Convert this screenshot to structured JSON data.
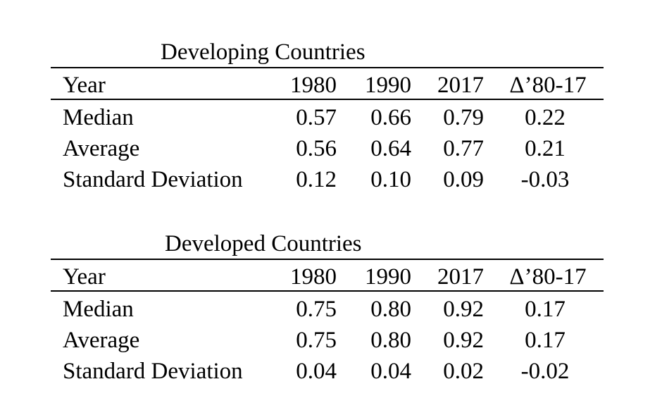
{
  "tables": [
    {
      "caption": "Developing Countries",
      "header": [
        "Year",
        "1980",
        "1990",
        "2017",
        "Δ’80-17"
      ],
      "rows": [
        [
          "Median",
          "0.57",
          "0.66",
          "0.79",
          "0.22"
        ],
        [
          "Average",
          "0.56",
          "0.64",
          "0.77",
          "0.21"
        ],
        [
          "Standard Deviation",
          "0.12",
          "0.10",
          "0.09",
          "-0.03"
        ]
      ]
    },
    {
      "caption": "Developed Countries",
      "header": [
        "Year",
        "1980",
        "1990",
        "2017",
        "Δ’80-17"
      ],
      "rows": [
        [
          "Median",
          "0.75",
          "0.80",
          "0.92",
          "0.17"
        ],
        [
          "Average",
          "0.75",
          "0.80",
          "0.92",
          "0.17"
        ],
        [
          "Standard Deviation",
          "0.04",
          "0.04",
          "0.02",
          "-0.02"
        ]
      ]
    }
  ]
}
